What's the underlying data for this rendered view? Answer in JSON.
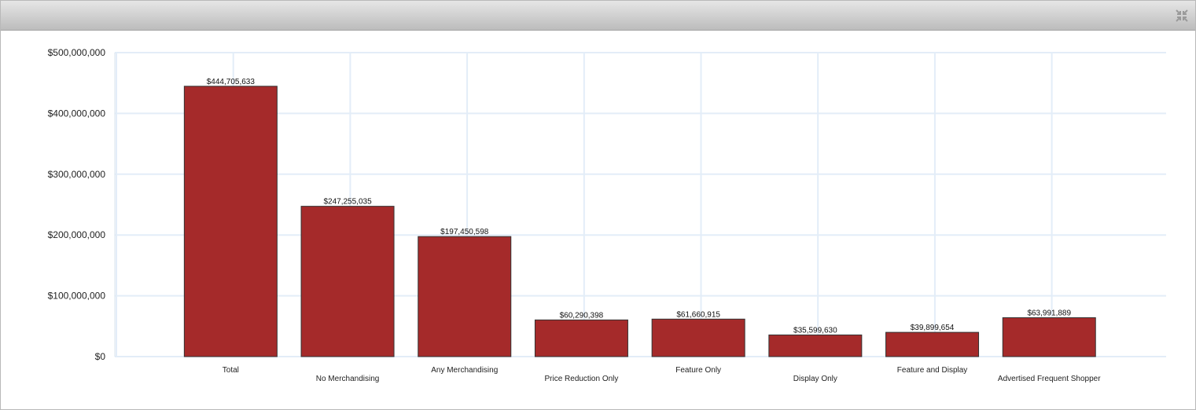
{
  "colors": {
    "bar": "#a52a2a",
    "grid": "#e3edf8",
    "axis": "#d8e3ee",
    "bar_border": "#333333"
  },
  "window": {
    "collapse_icon": "collapse-arrows-icon"
  },
  "chart_data": {
    "type": "bar",
    "categories": [
      "Total",
      "No Merchandising",
      "Any Merchandising",
      "Price Reduction Only",
      "Feature Only",
      "Display Only",
      "Feature and Display",
      "Advertised Frequent Shopper"
    ],
    "values": [
      444705633,
      247255035,
      197450598,
      60290398,
      61660915,
      35599630,
      39899654,
      63991889
    ],
    "data_labels": [
      "$444,705,633",
      "$247,255,035",
      "$197,450,598",
      "$60,290,398",
      "$61,660,915",
      "$35,599,630",
      "$39,899,654",
      "$63,991,889"
    ],
    "y_ticks": [
      0,
      100000000,
      200000000,
      300000000,
      400000000,
      500000000
    ],
    "y_tick_labels": [
      "$0",
      "$100,000,000",
      "$200,000,000",
      "$300,000,000",
      "$400,000,000",
      "$500,000,000"
    ],
    "ylim": [
      0,
      500000000
    ],
    "title": "",
    "xlabel": "",
    "ylabel": "",
    "grid": true,
    "legend": "none"
  }
}
